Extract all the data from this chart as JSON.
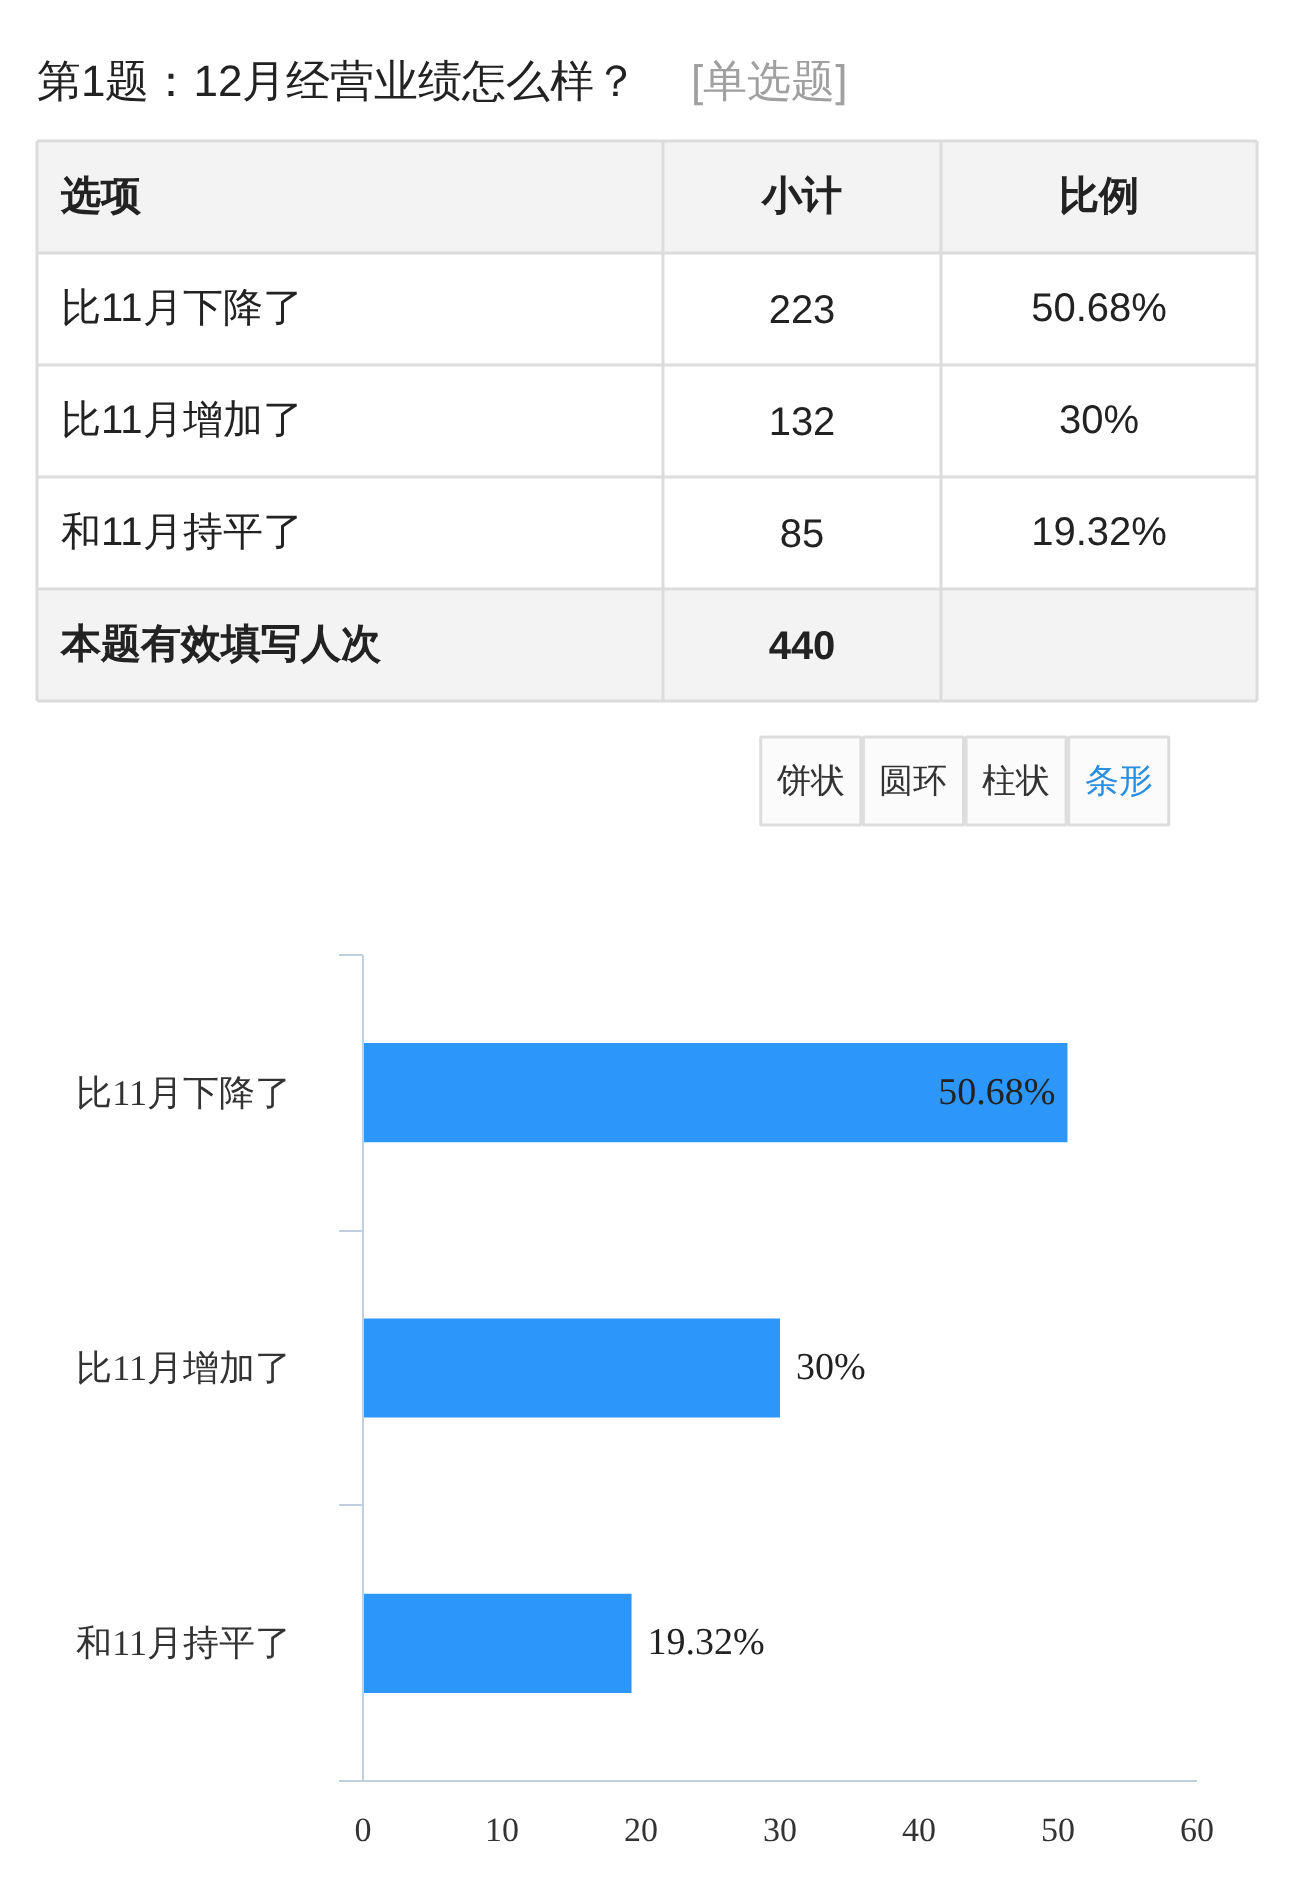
{
  "chart_data": [
    {
      "type": "other",
      "title": "第1题：12月经营业绩怎么样？",
      "subtitle": "[单选题]",
      "annotations": [
        "选项",
        "小计",
        "比例",
        "比11月下降了",
        "223",
        "50.68%",
        "比11月增加了",
        "132",
        "30%",
        "和11月持平了",
        "85",
        "19.32%",
        "本题有效填写人次",
        "440"
      ]
    },
    {
      "type": "bar",
      "orientation": "horizontal",
      "categories": [
        "比11月下降了",
        "比11月增加了",
        "和11月持平了"
      ],
      "values": [
        50.68,
        30,
        19.32
      ],
      "color": "#2d96f9",
      "value_labels": [
        "50.68%",
        "30%",
        "19.32%"
      ],
      "xlim": [
        0,
        60
      ],
      "xticks": [
        0,
        10,
        20,
        30,
        40,
        50,
        60
      ],
      "annotations": [
        "饼状",
        "圆环",
        "柱状",
        "条形"
      ]
    }
  ]
}
